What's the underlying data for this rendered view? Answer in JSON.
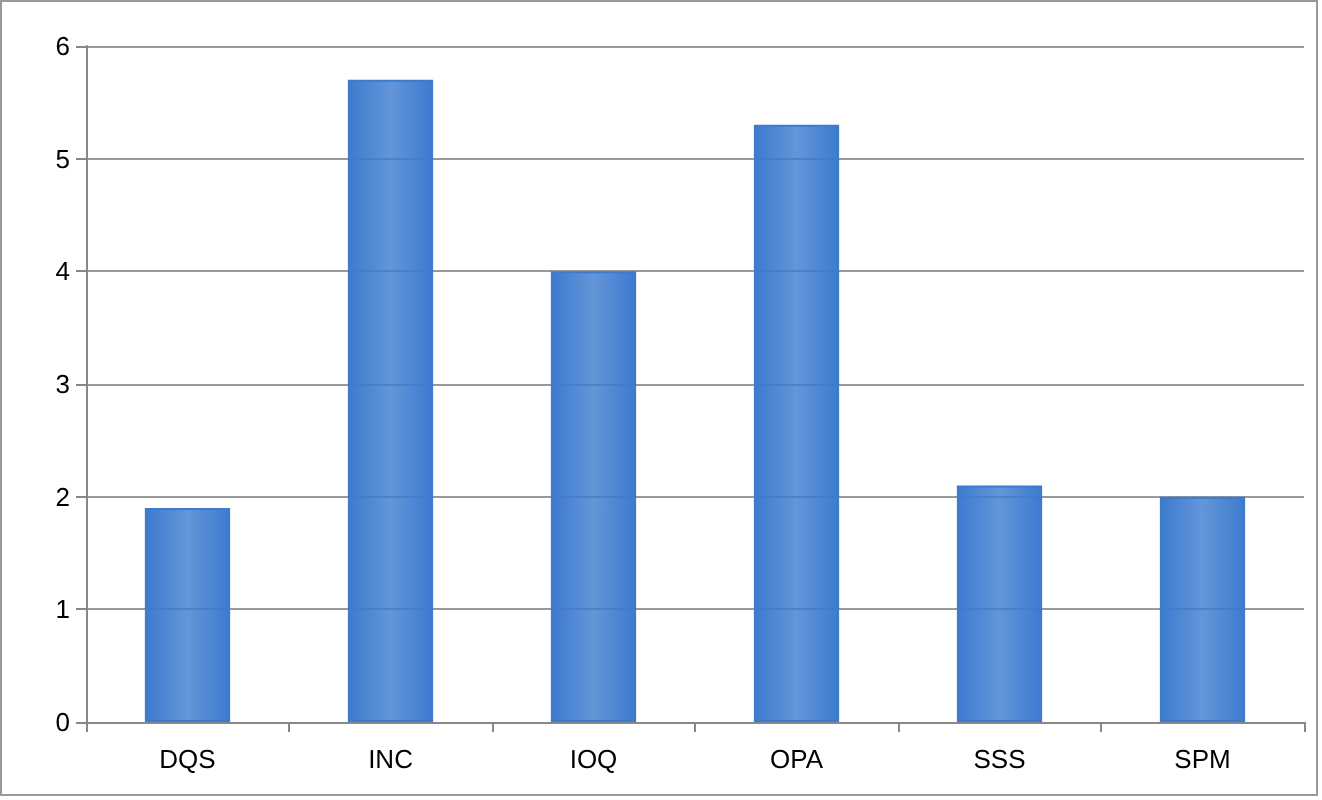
{
  "chart_data": {
    "type": "bar",
    "categories": [
      "DQS",
      "INC",
      "IOQ",
      "OPA",
      "SSS",
      "SPM"
    ],
    "values": [
      1.9,
      5.7,
      4.0,
      5.3,
      2.1,
      2.0
    ],
    "color": "#3d7bcf",
    "ylim": [
      0,
      6
    ],
    "yticks": [
      0,
      1,
      2,
      3,
      4,
      5,
      6
    ],
    "grid": "y"
  }
}
